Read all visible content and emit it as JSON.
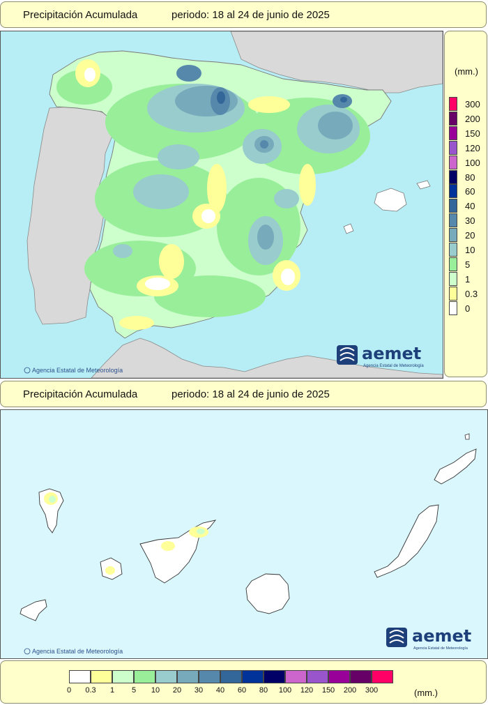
{
  "panels": {
    "peninsula": {
      "title": "Precipitación Acumulada",
      "period": "periodo: 18 al 24 de junio de 2025",
      "copyright": "Agencia Estatal de Meteorología"
    },
    "canarias": {
      "title": "Precipitación Acumulada",
      "period": "periodo: 18 al 24 de junio de 2025",
      "copyright": "Agencia Estatal de Meteorología"
    }
  },
  "logo": {
    "brand": "aemet",
    "subtitle": "Agencia Estatal de Meteorología"
  },
  "legend": {
    "unit": "(mm.)",
    "classes": [
      {
        "label": "0",
        "color": "#ffffff"
      },
      {
        "label": "0.3",
        "color": "#ffff99"
      },
      {
        "label": "1",
        "color": "#ccffcc"
      },
      {
        "label": "5",
        "color": "#99ee99"
      },
      {
        "label": "10",
        "color": "#99cccc"
      },
      {
        "label": "20",
        "color": "#77aabb"
      },
      {
        "label": "30",
        "color": "#5588aa"
      },
      {
        "label": "40",
        "color": "#336699"
      },
      {
        "label": "60",
        "color": "#003399"
      },
      {
        "label": "80",
        "color": "#000066"
      },
      {
        "label": "100",
        "color": "#cc66cc"
      },
      {
        "label": "120",
        "color": "#9955cc"
      },
      {
        "label": "150",
        "color": "#990099"
      },
      {
        "label": "200",
        "color": "#660066"
      },
      {
        "label": "300",
        "color": "#ff0066"
      }
    ]
  },
  "colors": {
    "sea": "#b7eef5",
    "neighbor_land": "#d9d9d9",
    "panel_background": "#ffffcc"
  }
}
